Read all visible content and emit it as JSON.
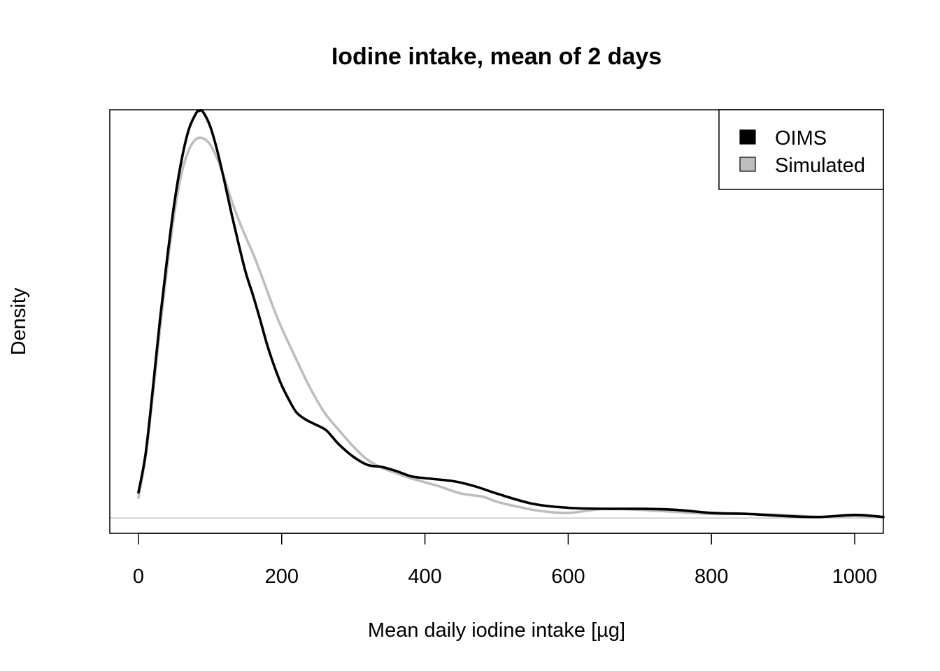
{
  "chart_data": {
    "type": "line",
    "title": "Iodine intake, mean of 2 days",
    "xlabel": "Mean daily iodine intake [µg]",
    "ylabel": "Density",
    "xlim": [
      -40,
      1040
    ],
    "ylim": [
      -0.00015,
      0.004
    ],
    "xticks": [
      0,
      200,
      400,
      600,
      800,
      1000
    ],
    "grid": false,
    "legend_position": "top-right",
    "baseline_color": "#bebebe",
    "series": [
      {
        "name": "OIMS",
        "color": "#000000",
        "x": [
          0,
          10,
          20,
          30,
          40,
          50,
          60,
          70,
          80,
          85,
          90,
          100,
          110,
          120,
          130,
          140,
          150,
          160,
          170,
          180,
          190,
          200,
          210,
          220,
          230,
          240,
          260,
          270,
          280,
          300,
          320,
          340,
          360,
          380,
          400,
          440,
          470,
          500,
          550,
          600,
          650,
          700,
          750,
          800,
          850,
          900,
          950,
          1000,
          1040
        ],
        "y": [
          0.00025,
          0.00063,
          0.00126,
          0.00194,
          0.00254,
          0.00308,
          0.0035,
          0.0038,
          0.00396,
          0.00399,
          0.00398,
          0.00384,
          0.0036,
          0.0033,
          0.00298,
          0.00268,
          0.0024,
          0.00218,
          0.00194,
          0.00169,
          0.00148,
          0.0013,
          0.00116,
          0.00104,
          0.00098,
          0.00094,
          0.00087,
          0.0008,
          0.00072,
          0.0006,
          0.00052,
          0.0005,
          0.00046,
          0.00041,
          0.00039,
          0.00036,
          0.00031,
          0.00024,
          0.00014,
          0.0001,
          9e-05,
          9e-05,
          8e-05,
          5e-05,
          4e-05,
          2e-05,
          1e-05,
          3e-05,
          1e-05
        ]
      },
      {
        "name": "Simulated",
        "color": "#bebebe",
        "x": [
          0,
          10,
          20,
          30,
          40,
          50,
          60,
          70,
          80,
          90,
          100,
          110,
          120,
          130,
          140,
          150,
          160,
          170,
          180,
          190,
          200,
          220,
          240,
          260,
          280,
          300,
          320,
          340,
          360,
          380,
          400,
          420,
          450,
          480,
          500,
          530,
          560,
          600,
          650,
          700,
          750,
          800,
          850,
          900,
          950,
          1000,
          1040
        ],
        "y": [
          0.0002,
          0.0006,
          0.0012,
          0.00185,
          0.00245,
          0.00298,
          0.00337,
          0.0036,
          0.00371,
          0.00372,
          0.00366,
          0.00352,
          0.00333,
          0.00311,
          0.00292,
          0.00275,
          0.00259,
          0.00241,
          0.00222,
          0.00203,
          0.00186,
          0.00156,
          0.00127,
          0.00103,
          0.00086,
          0.0007,
          0.00057,
          0.00049,
          0.00044,
          0.00039,
          0.00035,
          0.00031,
          0.00024,
          0.00021,
          0.00016,
          0.00011,
          7e-05,
          5e-05,
          9e-05,
          8e-05,
          6e-05,
          4e-05,
          4e-05,
          3e-05,
          1e-05,
          2e-05,
          1e-05
        ]
      }
    ]
  }
}
